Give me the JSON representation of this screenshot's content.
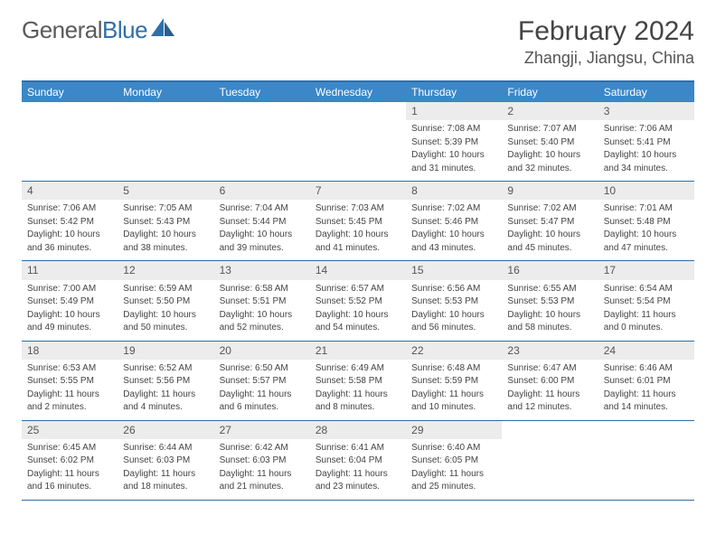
{
  "logo": {
    "text_gray": "General",
    "text_blue": "Blue"
  },
  "title": "February 2024",
  "location": "Zhangji, Jiangsu, China",
  "colors": {
    "header_bar": "#3b87c8",
    "border": "#2f6fa8",
    "daynum_bg": "#ececec",
    "text": "#3a3a3a"
  },
  "weekdays": [
    "Sunday",
    "Monday",
    "Tuesday",
    "Wednesday",
    "Thursday",
    "Friday",
    "Saturday"
  ],
  "weeks": [
    [
      {
        "empty": true
      },
      {
        "empty": true
      },
      {
        "empty": true
      },
      {
        "empty": true
      },
      {
        "day": "1",
        "sunrise": "Sunrise: 7:08 AM",
        "sunset": "Sunset: 5:39 PM",
        "daylight1": "Daylight: 10 hours",
        "daylight2": "and 31 minutes."
      },
      {
        "day": "2",
        "sunrise": "Sunrise: 7:07 AM",
        "sunset": "Sunset: 5:40 PM",
        "daylight1": "Daylight: 10 hours",
        "daylight2": "and 32 minutes."
      },
      {
        "day": "3",
        "sunrise": "Sunrise: 7:06 AM",
        "sunset": "Sunset: 5:41 PM",
        "daylight1": "Daylight: 10 hours",
        "daylight2": "and 34 minutes."
      }
    ],
    [
      {
        "day": "4",
        "sunrise": "Sunrise: 7:06 AM",
        "sunset": "Sunset: 5:42 PM",
        "daylight1": "Daylight: 10 hours",
        "daylight2": "and 36 minutes."
      },
      {
        "day": "5",
        "sunrise": "Sunrise: 7:05 AM",
        "sunset": "Sunset: 5:43 PM",
        "daylight1": "Daylight: 10 hours",
        "daylight2": "and 38 minutes."
      },
      {
        "day": "6",
        "sunrise": "Sunrise: 7:04 AM",
        "sunset": "Sunset: 5:44 PM",
        "daylight1": "Daylight: 10 hours",
        "daylight2": "and 39 minutes."
      },
      {
        "day": "7",
        "sunrise": "Sunrise: 7:03 AM",
        "sunset": "Sunset: 5:45 PM",
        "daylight1": "Daylight: 10 hours",
        "daylight2": "and 41 minutes."
      },
      {
        "day": "8",
        "sunrise": "Sunrise: 7:02 AM",
        "sunset": "Sunset: 5:46 PM",
        "daylight1": "Daylight: 10 hours",
        "daylight2": "and 43 minutes."
      },
      {
        "day": "9",
        "sunrise": "Sunrise: 7:02 AM",
        "sunset": "Sunset: 5:47 PM",
        "daylight1": "Daylight: 10 hours",
        "daylight2": "and 45 minutes."
      },
      {
        "day": "10",
        "sunrise": "Sunrise: 7:01 AM",
        "sunset": "Sunset: 5:48 PM",
        "daylight1": "Daylight: 10 hours",
        "daylight2": "and 47 minutes."
      }
    ],
    [
      {
        "day": "11",
        "sunrise": "Sunrise: 7:00 AM",
        "sunset": "Sunset: 5:49 PM",
        "daylight1": "Daylight: 10 hours",
        "daylight2": "and 49 minutes."
      },
      {
        "day": "12",
        "sunrise": "Sunrise: 6:59 AM",
        "sunset": "Sunset: 5:50 PM",
        "daylight1": "Daylight: 10 hours",
        "daylight2": "and 50 minutes."
      },
      {
        "day": "13",
        "sunrise": "Sunrise: 6:58 AM",
        "sunset": "Sunset: 5:51 PM",
        "daylight1": "Daylight: 10 hours",
        "daylight2": "and 52 minutes."
      },
      {
        "day": "14",
        "sunrise": "Sunrise: 6:57 AM",
        "sunset": "Sunset: 5:52 PM",
        "daylight1": "Daylight: 10 hours",
        "daylight2": "and 54 minutes."
      },
      {
        "day": "15",
        "sunrise": "Sunrise: 6:56 AM",
        "sunset": "Sunset: 5:53 PM",
        "daylight1": "Daylight: 10 hours",
        "daylight2": "and 56 minutes."
      },
      {
        "day": "16",
        "sunrise": "Sunrise: 6:55 AM",
        "sunset": "Sunset: 5:53 PM",
        "daylight1": "Daylight: 10 hours",
        "daylight2": "and 58 minutes."
      },
      {
        "day": "17",
        "sunrise": "Sunrise: 6:54 AM",
        "sunset": "Sunset: 5:54 PM",
        "daylight1": "Daylight: 11 hours",
        "daylight2": "and 0 minutes."
      }
    ],
    [
      {
        "day": "18",
        "sunrise": "Sunrise: 6:53 AM",
        "sunset": "Sunset: 5:55 PM",
        "daylight1": "Daylight: 11 hours",
        "daylight2": "and 2 minutes."
      },
      {
        "day": "19",
        "sunrise": "Sunrise: 6:52 AM",
        "sunset": "Sunset: 5:56 PM",
        "daylight1": "Daylight: 11 hours",
        "daylight2": "and 4 minutes."
      },
      {
        "day": "20",
        "sunrise": "Sunrise: 6:50 AM",
        "sunset": "Sunset: 5:57 PM",
        "daylight1": "Daylight: 11 hours",
        "daylight2": "and 6 minutes."
      },
      {
        "day": "21",
        "sunrise": "Sunrise: 6:49 AM",
        "sunset": "Sunset: 5:58 PM",
        "daylight1": "Daylight: 11 hours",
        "daylight2": "and 8 minutes."
      },
      {
        "day": "22",
        "sunrise": "Sunrise: 6:48 AM",
        "sunset": "Sunset: 5:59 PM",
        "daylight1": "Daylight: 11 hours",
        "daylight2": "and 10 minutes."
      },
      {
        "day": "23",
        "sunrise": "Sunrise: 6:47 AM",
        "sunset": "Sunset: 6:00 PM",
        "daylight1": "Daylight: 11 hours",
        "daylight2": "and 12 minutes."
      },
      {
        "day": "24",
        "sunrise": "Sunrise: 6:46 AM",
        "sunset": "Sunset: 6:01 PM",
        "daylight1": "Daylight: 11 hours",
        "daylight2": "and 14 minutes."
      }
    ],
    [
      {
        "day": "25",
        "sunrise": "Sunrise: 6:45 AM",
        "sunset": "Sunset: 6:02 PM",
        "daylight1": "Daylight: 11 hours",
        "daylight2": "and 16 minutes."
      },
      {
        "day": "26",
        "sunrise": "Sunrise: 6:44 AM",
        "sunset": "Sunset: 6:03 PM",
        "daylight1": "Daylight: 11 hours",
        "daylight2": "and 18 minutes."
      },
      {
        "day": "27",
        "sunrise": "Sunrise: 6:42 AM",
        "sunset": "Sunset: 6:03 PM",
        "daylight1": "Daylight: 11 hours",
        "daylight2": "and 21 minutes."
      },
      {
        "day": "28",
        "sunrise": "Sunrise: 6:41 AM",
        "sunset": "Sunset: 6:04 PM",
        "daylight1": "Daylight: 11 hours",
        "daylight2": "and 23 minutes."
      },
      {
        "day": "29",
        "sunrise": "Sunrise: 6:40 AM",
        "sunset": "Sunset: 6:05 PM",
        "daylight1": "Daylight: 11 hours",
        "daylight2": "and 25 minutes."
      },
      {
        "empty": true
      },
      {
        "empty": true
      }
    ]
  ]
}
